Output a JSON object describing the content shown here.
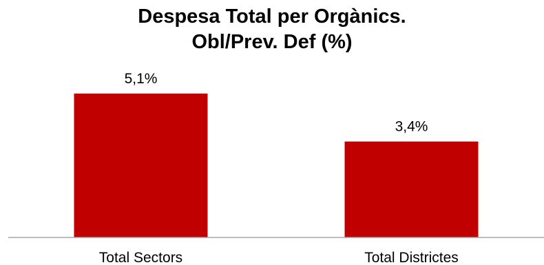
{
  "chart_data": {
    "type": "bar",
    "title_lines": [
      "Despesa Total per Orgànics.",
      "Obl/Prev. Def (%)"
    ],
    "categories": [
      "Total Sectors",
      "Total Districtes"
    ],
    "values": [
      5.1,
      3.4
    ],
    "data_labels": [
      "5,1%",
      "3,4%"
    ],
    "xlabel": "",
    "ylabel": "",
    "ylim": [
      0,
      6.5
    ],
    "grid": false,
    "legend": "none",
    "bar_color": "#c00000",
    "axis_color": "#a6a6a6"
  }
}
